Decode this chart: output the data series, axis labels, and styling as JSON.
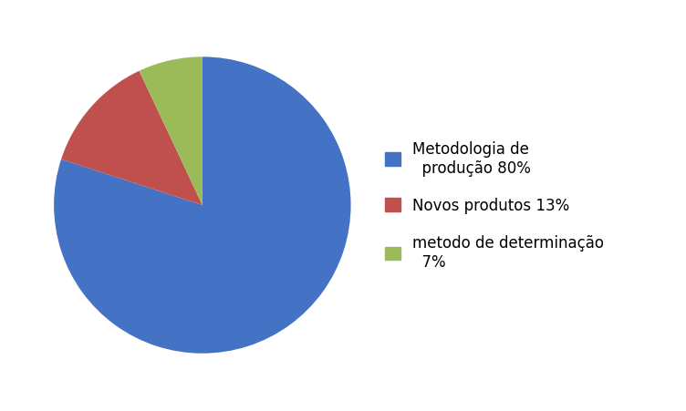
{
  "slices": [
    80,
    13,
    7
  ],
  "labels": [
    "Metodologia de\n  produção 80%",
    "Novos produtos 13%",
    "metodo de determinação\n  7%"
  ],
  "colors": [
    "#4472C4",
    "#C0504D",
    "#9BBB59"
  ],
  "startangle": 90,
  "background_color": "#ffffff",
  "legend_fontsize": 12,
  "figsize": [
    7.52,
    4.52
  ]
}
